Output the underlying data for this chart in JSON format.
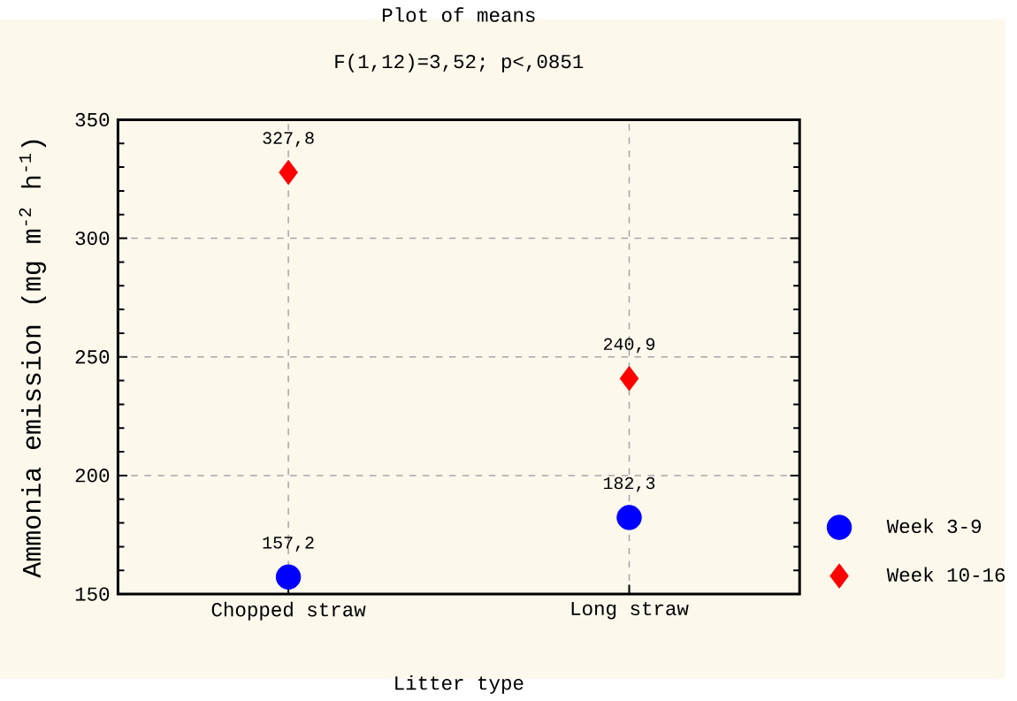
{
  "chart_data": {
    "type": "scatter",
    "title": "Plot of means",
    "subtitle": "F(1,12)=3,52; p<,0851",
    "xlabel": "Litter type",
    "ylabel": "Ammonia emission (mg m$^{-2}$ h$^{-1}$)",
    "categories": [
      "Chopped straw",
      "Long straw"
    ],
    "series": [
      {
        "name": "Week 3-9",
        "color": "#0000ff",
        "marker": "circle",
        "values": [
          157.2,
          182.3
        ],
        "value_labels": [
          "157,2",
          "182,3"
        ]
      },
      {
        "name": "Week 10-16",
        "color": "#ff0000",
        "marker": "diamond",
        "values": [
          327.8,
          240.9
        ],
        "value_labels": [
          "327,8",
          "240,9"
        ]
      }
    ],
    "ylim": [
      150,
      350
    ],
    "yticks": [
      150,
      200,
      250,
      300,
      350
    ],
    "grid": true,
    "legend": "bottom right"
  }
}
